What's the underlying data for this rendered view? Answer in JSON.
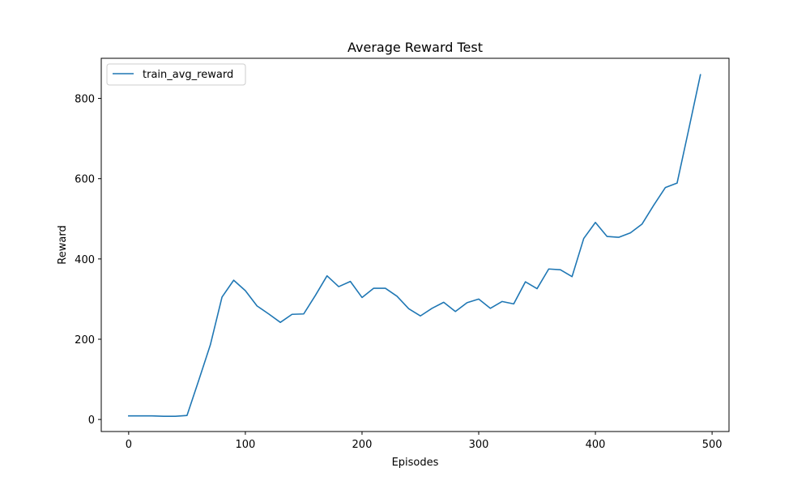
{
  "chart_data": {
    "type": "line",
    "title": "Average Reward Test",
    "xlabel": "Episodes",
    "ylabel": "Reward",
    "xlim": [
      -23.5,
      514.5
    ],
    "ylim": [
      -30,
      900
    ],
    "xticks": [
      0,
      100,
      200,
      300,
      400,
      500
    ],
    "yticks": [
      0,
      200,
      400,
      600,
      800
    ],
    "grid": false,
    "legend_position": "top-left",
    "series": [
      {
        "name": "train_avg_reward",
        "color": "#1f77b4",
        "x": [
          0,
          10,
          20,
          30,
          40,
          50,
          60,
          70,
          80,
          90,
          100,
          110,
          120,
          130,
          140,
          150,
          160,
          170,
          180,
          190,
          200,
          210,
          220,
          230,
          240,
          250,
          260,
          270,
          280,
          290,
          300,
          310,
          320,
          330,
          340,
          350,
          360,
          370,
          380,
          390,
          400,
          410,
          420,
          430,
          440,
          450,
          460,
          470,
          480,
          490
        ],
        "y": [
          9,
          9,
          9,
          8,
          8,
          10,
          97,
          186,
          305,
          347,
          321,
          283,
          263,
          242,
          262,
          263,
          309,
          358,
          331,
          344,
          304,
          327,
          327,
          307,
          276,
          258,
          277,
          292,
          269,
          291,
          300,
          277,
          294,
          288,
          343,
          326,
          375,
          373,
          356,
          451,
          491,
          456,
          454,
          465,
          487,
          534,
          578,
          589,
          723,
          859
        ]
      }
    ]
  }
}
